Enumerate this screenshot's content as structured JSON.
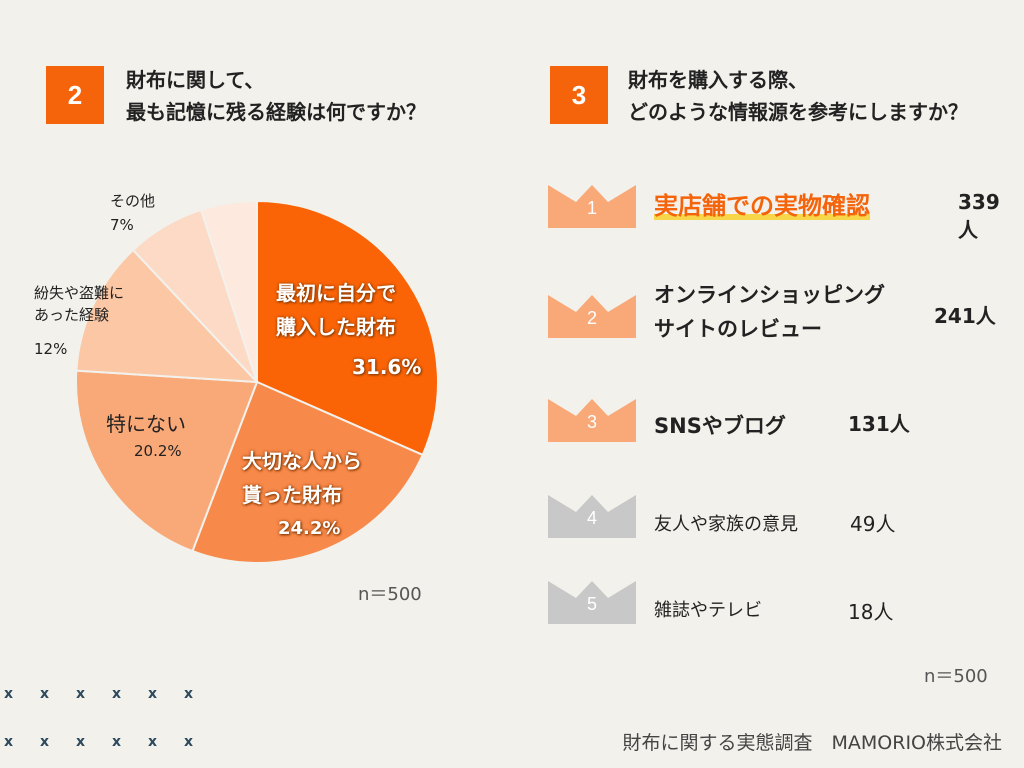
{
  "q2": {
    "number": "2",
    "title": "財布に関して、\n最も記憶に残る経験は何ですか？"
  },
  "q3": {
    "number": "3",
    "title": "財布を購入する際、\nどのような情報源を参考にしますか？"
  },
  "chart_data": [
    {
      "type": "pie",
      "slices": [
        {
          "label": "最初に自分で\n購入した財布",
          "value_label": "31.6%",
          "value": 31.6,
          "color": "#fb6406"
        },
        {
          "label": "大切な人から\n貰った財布",
          "value_label": "24.2%",
          "value": 24.2,
          "color": "#f7894a"
        },
        {
          "label": "特にない",
          "value_label": "20.2%",
          "value": 20.2,
          "color": "#f9a877"
        },
        {
          "label": "紛失や盗難に\nあった経験",
          "value_label": "12%",
          "value": 12,
          "color": "#fbc7a4"
        },
        {
          "label": "その他",
          "value_label": "7%",
          "value": 7,
          "color": "#fcdac6"
        },
        {
          "label": "",
          "value_label": "",
          "value": 5,
          "color": "#fde9de"
        }
      ],
      "n_label": "n＝500"
    },
    {
      "type": "table",
      "rows": [
        {
          "rank": "1",
          "label": "実店舗での実物確認",
          "count": "339人",
          "value": 339,
          "color": "#f9a877"
        },
        {
          "rank": "2",
          "label": "オンラインショッピング\nサイトのレビュー",
          "count": "241人",
          "value": 241,
          "color": "#f9a877"
        },
        {
          "rank": "3",
          "label": "SNSやブログ",
          "count": "131人",
          "value": 131,
          "color": "#f9a877"
        },
        {
          "rank": "4",
          "label": "友人や家族の意見",
          "count": "49人",
          "value": 49,
          "color": "#c8c8c8"
        },
        {
          "rank": "5",
          "label": "雑誌やテレビ",
          "count": "18人",
          "value": 18,
          "color": "#c8c8c8"
        }
      ],
      "n_label": "n＝500"
    }
  ],
  "decoration": {
    "x_glyph": "x"
  },
  "footer": "財布に関する実態調査　MAMORIO株式会社"
}
